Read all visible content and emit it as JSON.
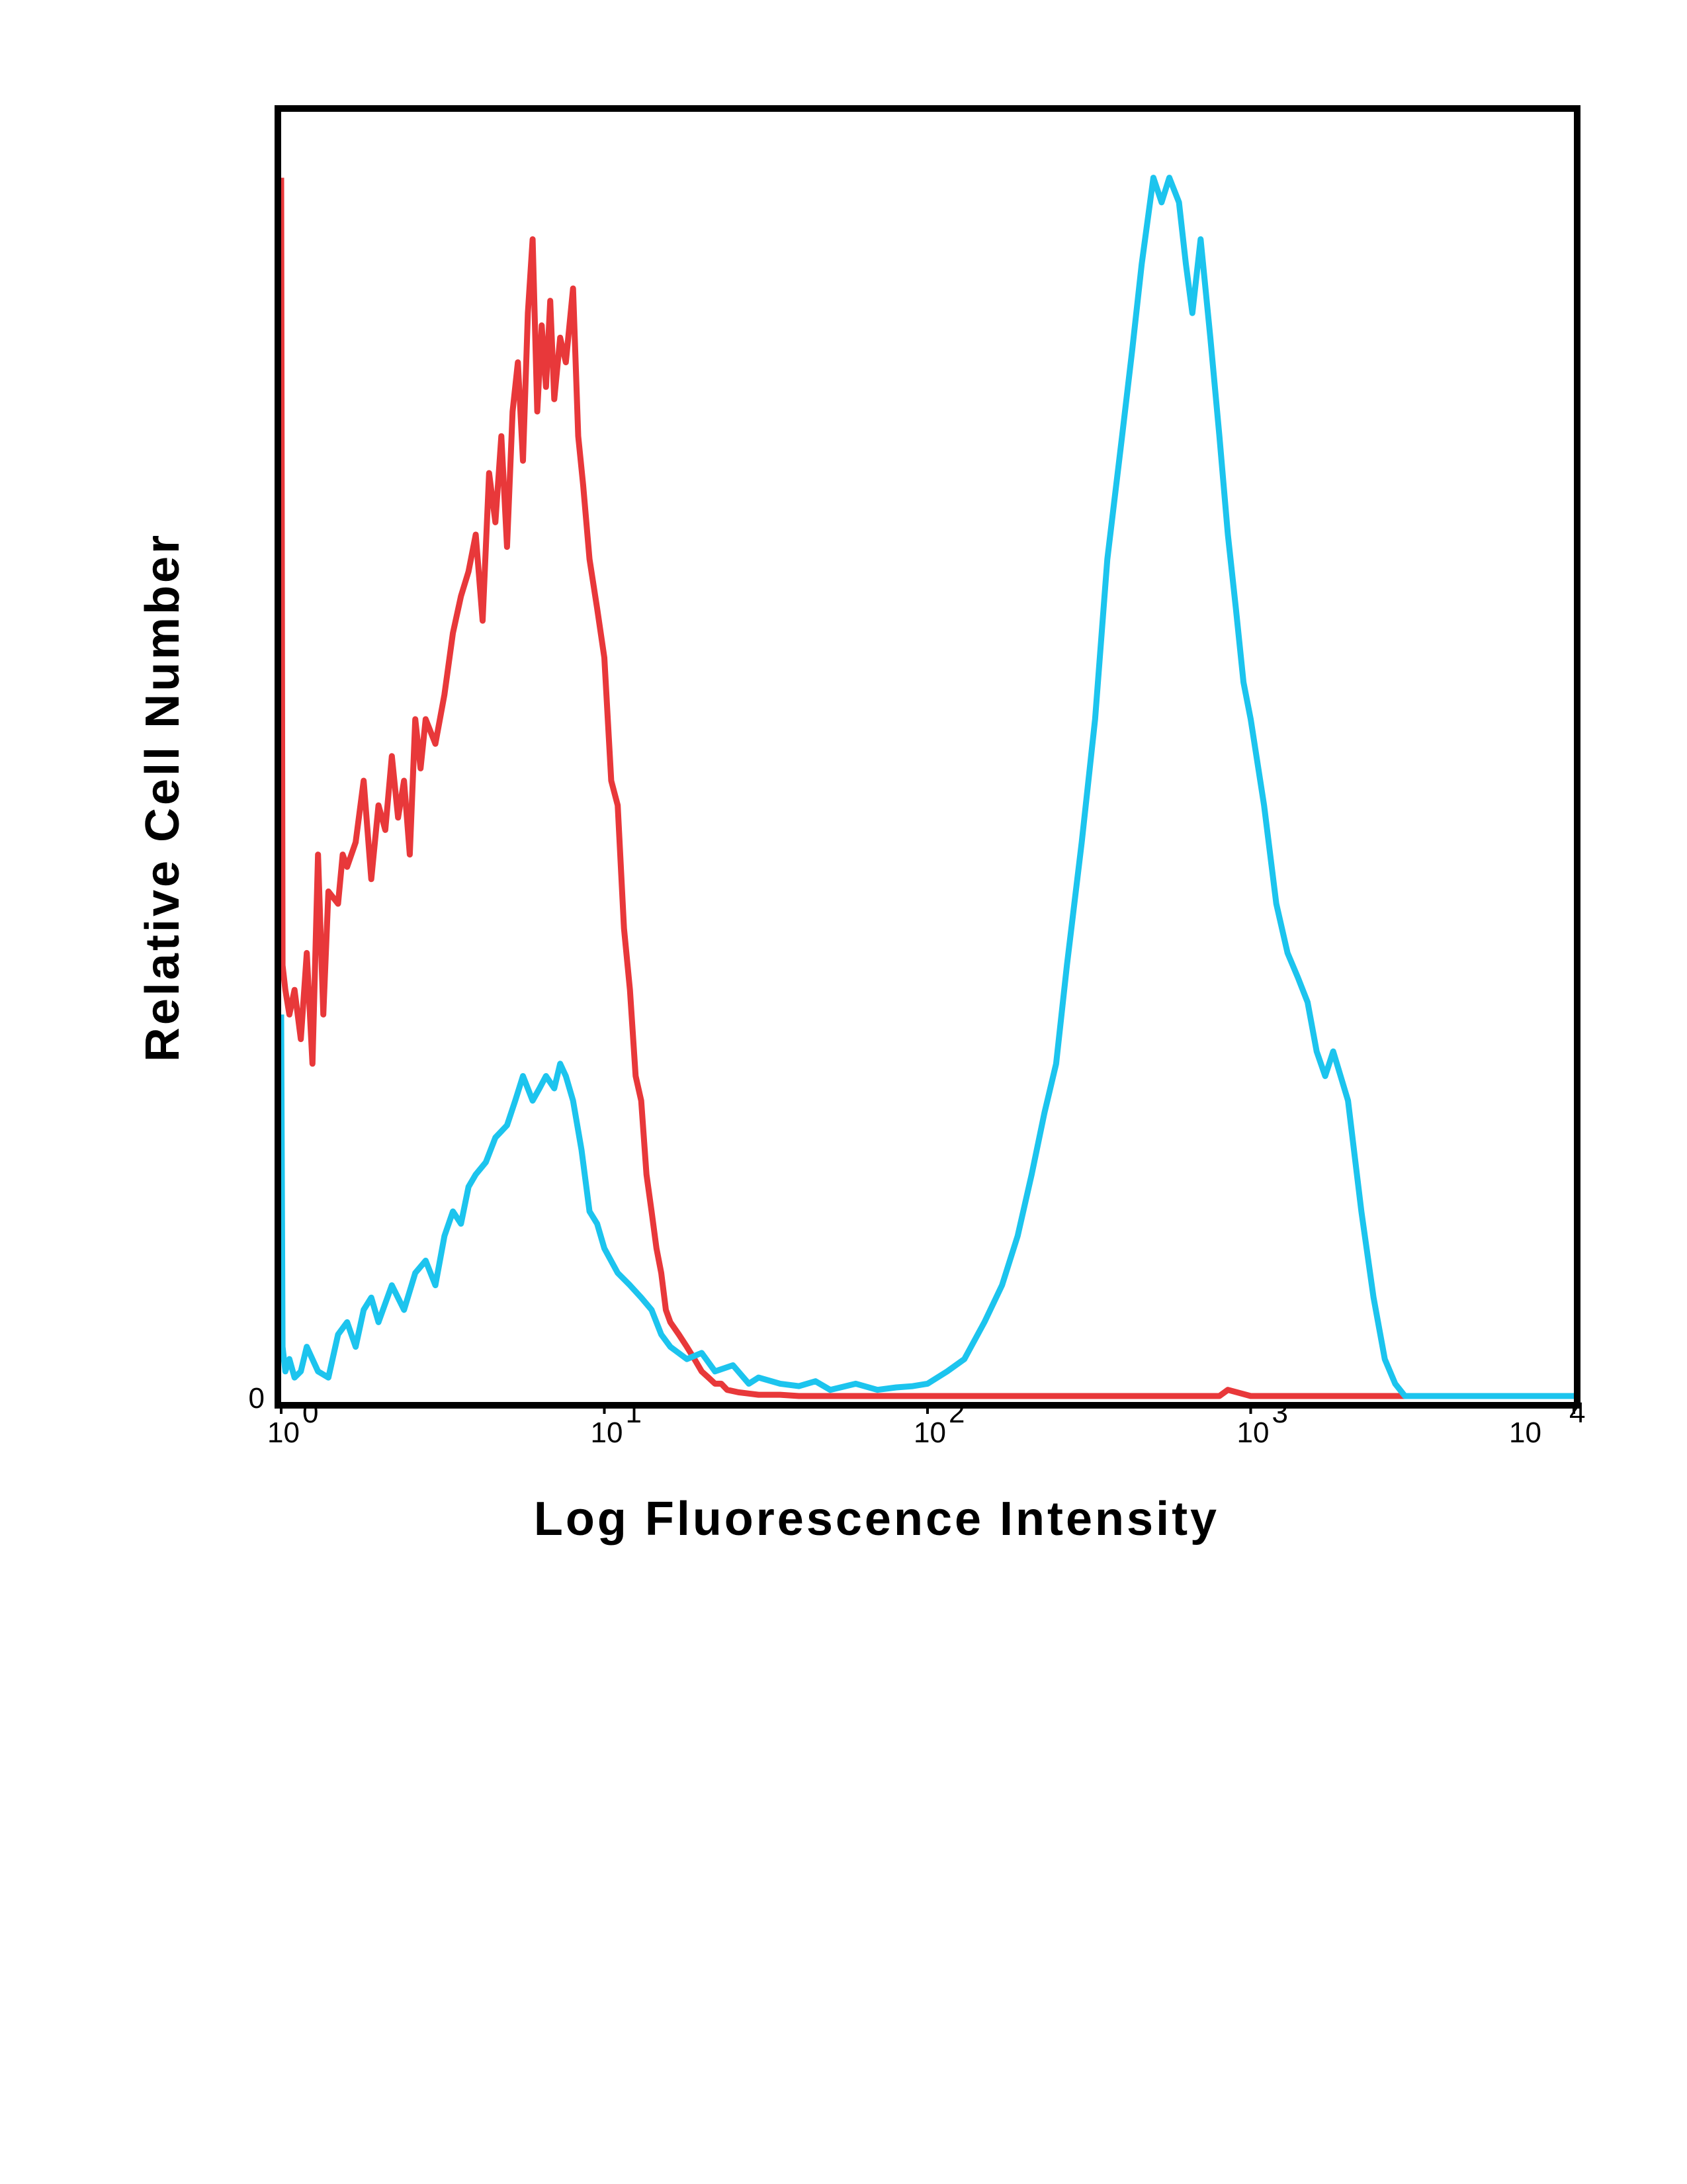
{
  "chart_data": {
    "type": "line",
    "title": "",
    "xlabel": "Log Fluorescence Intensity",
    "ylabel": "Relative Cell Number",
    "xscale": "log",
    "xlim": [
      1,
      10000
    ],
    "ylim": [
      0,
      100
    ],
    "grid": false,
    "legend": "none",
    "x_ticks": [
      {
        "base": "10",
        "exp": "0"
      },
      {
        "base": "10",
        "exp": "1"
      },
      {
        "base": "10",
        "exp": "2"
      },
      {
        "base": "10",
        "exp": "3"
      },
      {
        "base": "10",
        "exp": "4"
      }
    ],
    "y_ticks": [
      "0"
    ],
    "series": [
      {
        "color": "#e8383a",
        "x": [
          1.0,
          1.01,
          1.03,
          1.06,
          1.1,
          1.15,
          1.2,
          1.25,
          1.3,
          1.35,
          1.4,
          1.5,
          1.55,
          1.6,
          1.7,
          1.8,
          1.9,
          2.0,
          2.1,
          2.2,
          2.3,
          2.4,
          2.5,
          2.6,
          2.7,
          2.8,
          3.0,
          3.2,
          3.4,
          3.6,
          3.8,
          4.0,
          4.2,
          4.4,
          4.6,
          4.8,
          5.0,
          5.2,
          5.4,
          5.6,
          5.8,
          6.0,
          6.2,
          6.4,
          6.6,
          6.8,
          7.0,
          7.3,
          7.6,
          8.0,
          8.3,
          8.6,
          9.0,
          9.5,
          10.0,
          10.5,
          11.0,
          11.5,
          12.0,
          12.5,
          13.0,
          13.5,
          14.0,
          14.5,
          15.0,
          15.5,
          16.0,
          17.0,
          18.0,
          19.0,
          20.0,
          21.0,
          22.0,
          23.0,
          24.0,
          26.0,
          28.0,
          30.0,
          35.0,
          40.0,
          50.0,
          70.0,
          100.0,
          200.0,
          500.0,
          800.0,
          850.0,
          1000.0,
          2000.0,
          3000.0,
          10000.0
        ],
        "y": [
          99,
          35,
          33,
          31,
          33,
          29,
          36,
          27,
          44,
          31,
          41,
          40,
          44,
          43,
          45,
          50,
          42,
          48,
          46,
          52,
          47,
          50,
          44,
          55,
          51,
          55,
          53,
          57,
          62,
          65,
          67,
          70,
          63,
          75,
          71,
          78,
          69,
          80,
          84,
          76,
          88,
          94,
          80,
          87,
          82,
          89,
          81,
          86,
          84,
          90,
          78,
          74,
          68,
          64,
          60,
          50,
          48,
          38,
          33,
          26,
          24,
          18,
          15,
          12,
          10,
          7,
          6,
          5,
          4,
          3,
          2,
          1.5,
          1,
          1,
          0.5,
          0.3,
          0.2,
          0.1,
          0.1,
          0,
          0,
          0,
          0,
          0,
          0,
          0,
          0.5,
          0,
          0,
          0,
          0
        ]
      },
      {
        "color": "#1cc4ee",
        "x": [
          1.0,
          1.01,
          1.03,
          1.06,
          1.1,
          1.15,
          1.2,
          1.3,
          1.4,
          1.5,
          1.6,
          1.7,
          1.8,
          1.9,
          2.0,
          2.2,
          2.4,
          2.6,
          2.8,
          3.0,
          3.2,
          3.4,
          3.6,
          3.8,
          4.0,
          4.3,
          4.6,
          5.0,
          5.3,
          5.6,
          6.0,
          6.3,
          6.6,
          7.0,
          7.3,
          7.6,
          8.0,
          8.5,
          9.0,
          9.5,
          10.0,
          11.0,
          12.0,
          13.0,
          14.0,
          15.0,
          16.0,
          18.0,
          20.0,
          22.0,
          25.0,
          28.0,
          30.0,
          35.0,
          40.0,
          45.0,
          50.0,
          60.0,
          70.0,
          80.0,
          90.0,
          100.0,
          115.0,
          130.0,
          150.0,
          170.0,
          190.0,
          210.0,
          230.0,
          250.0,
          270.0,
          300.0,
          330.0,
          360.0,
          400.0,
          430.0,
          460.0,
          500.0,
          530.0,
          560.0,
          600.0,
          630.0,
          660.0,
          700.0,
          750.0,
          800.0,
          850.0,
          900.0,
          950.0,
          1000.0,
          1100.0,
          1200.0,
          1300.0,
          1400.0,
          1500.0,
          1600.0,
          1700.0,
          1800.0,
          2000.0,
          2200.0,
          2400.0,
          2600.0,
          2800.0,
          3000.0,
          10000.0
        ],
        "y": [
          31,
          4,
          2,
          3,
          1.5,
          2,
          4,
          2,
          1.5,
          5,
          6,
          4,
          7,
          8,
          6,
          9,
          7,
          10,
          11,
          9,
          13,
          15,
          14,
          17,
          18,
          19,
          21,
          22,
          24,
          26,
          24,
          25,
          26,
          25,
          27,
          26,
          24,
          20,
          15,
          14,
          12,
          10,
          9,
          8,
          7,
          5,
          4,
          3,
          3.5,
          2,
          2.5,
          1,
          1.5,
          1,
          0.8,
          1.2,
          0.5,
          1,
          0.5,
          0.7,
          0.8,
          1,
          2,
          3,
          6,
          9,
          13,
          18,
          23,
          27,
          35,
          45,
          55,
          68,
          78,
          85,
          92,
          99,
          97,
          99,
          97,
          92,
          88,
          94,
          86,
          78,
          70,
          64,
          58,
          55,
          48,
          40,
          36,
          34,
          32,
          28,
          26,
          28,
          24,
          15,
          8,
          3,
          1,
          0,
          0
        ]
      }
    ]
  }
}
